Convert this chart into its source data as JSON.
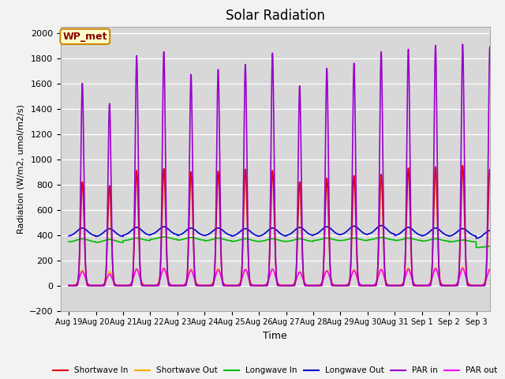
{
  "title": "Solar Radiation",
  "xlabel": "Time",
  "ylabel": "Radiation (W/m2, umol/m2/s)",
  "ylim": [
    -200,
    2050
  ],
  "yticks": [
    -200,
    0,
    200,
    400,
    600,
    800,
    1000,
    1200,
    1400,
    1600,
    1800,
    2000
  ],
  "x_tick_labels": [
    "Aug 19",
    "Aug 20",
    "Aug 21",
    "Aug 22",
    "Aug 23",
    "Aug 24",
    "Aug 25",
    "Aug 26",
    "Aug 27",
    "Aug 28",
    "Aug 29",
    "Aug 30",
    "Aug 31",
    "Sep 1",
    "Sep 2",
    "Sep 3"
  ],
  "x_tick_positions": [
    0,
    1,
    2,
    3,
    4,
    5,
    6,
    7,
    8,
    9,
    10,
    11,
    12,
    13,
    14,
    15
  ],
  "colors": {
    "shortwave_in": "#dd0000",
    "shortwave_out": "#ffaa00",
    "longwave_in": "#00bb00",
    "longwave_out": "#0000cc",
    "par_in": "#9900cc",
    "par_out": "#ff00ff"
  },
  "legend_labels": [
    "Shortwave In",
    "Shortwave Out",
    "Longwave In",
    "Longwave Out",
    "PAR in",
    "PAR out"
  ],
  "wp_met_label": "WP_met",
  "day_peaks": {
    "shortwave_in": [
      820,
      790,
      910,
      925,
      900,
      905,
      920,
      910,
      820,
      850,
      870,
      880,
      930,
      940,
      950,
      920
    ],
    "shortwave_out": [
      120,
      110,
      130,
      140,
      130,
      135,
      130,
      130,
      110,
      120,
      125,
      130,
      140,
      140,
      145,
      130
    ],
    "longwave_in_day": [
      370,
      365,
      375,
      385,
      380,
      375,
      370,
      370,
      370,
      375,
      375,
      380,
      375,
      370,
      360,
      310
    ],
    "longwave_in_night": [
      345,
      340,
      355,
      365,
      358,
      353,
      348,
      348,
      348,
      355,
      355,
      360,
      355,
      350,
      345,
      300
    ],
    "longwave_out_day": [
      455,
      450,
      460,
      465,
      455,
      455,
      450,
      455,
      460,
      465,
      470,
      475,
      460,
      455,
      450,
      435
    ],
    "longwave_out_night": [
      390,
      385,
      395,
      400,
      393,
      393,
      388,
      388,
      393,
      398,
      400,
      403,
      393,
      390,
      388,
      370
    ],
    "par_in": [
      1600,
      1440,
      1820,
      1850,
      1670,
      1710,
      1750,
      1840,
      1580,
      1720,
      1760,
      1850,
      1870,
      1900,
      1910,
      1890
    ],
    "par_out": [
      110,
      90,
      130,
      135,
      120,
      122,
      125,
      130,
      105,
      115,
      118,
      125,
      128,
      132,
      135,
      125
    ]
  },
  "plot_bg_color": "#d8d8d8",
  "fig_bg_color": "#f2f2f2"
}
